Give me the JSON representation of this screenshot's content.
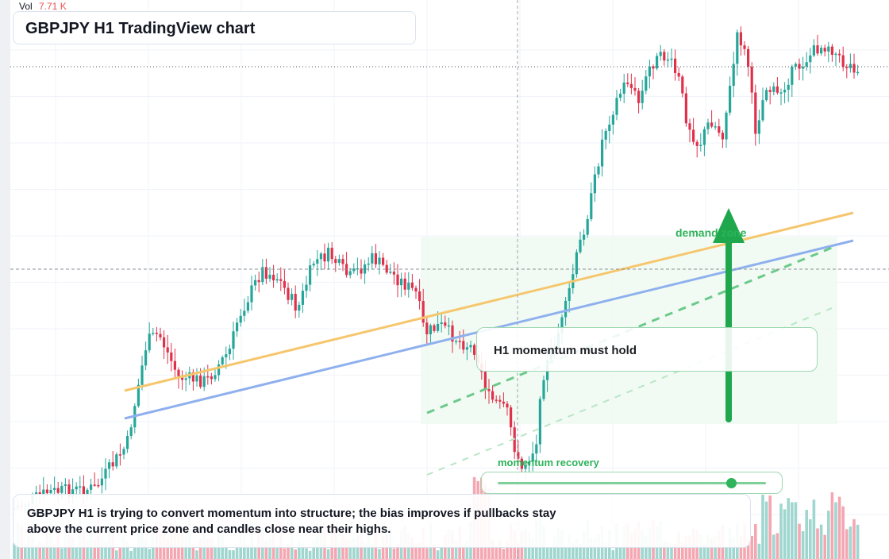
{
  "chart": {
    "title": "GBPJPY H1 TradingView chart",
    "volume_label": "Vol",
    "volume_value": "7.71 K",
    "zone_label": "demand zone",
    "recovery_label": "momentum recovery",
    "callout_text": "H1 momentum must hold",
    "summary_text": "GBPJPY H1 is trying to convert momentum into structure; the bias improves if pullbacks stay above the current price zone and candles close near their highs.",
    "momentum_level": 0.87
  },
  "colors": {
    "up": "#26a69a",
    "down": "#e0314b",
    "volume_up": "#9fd6cf",
    "volume_down": "#f4a7b1",
    "trend_orange": "#f6c66d",
    "trend_blue": "#8fb0ee",
    "accent_green": "#1fa74e",
    "zone_fill": "#eefaf1"
  },
  "chart_data": {
    "type": "candlestick",
    "title": "GBPJPY H1 TradingView chart",
    "symbol": "GBPJPY",
    "timeframe": "H1",
    "volume_reading": "7.71 K"
  }
}
